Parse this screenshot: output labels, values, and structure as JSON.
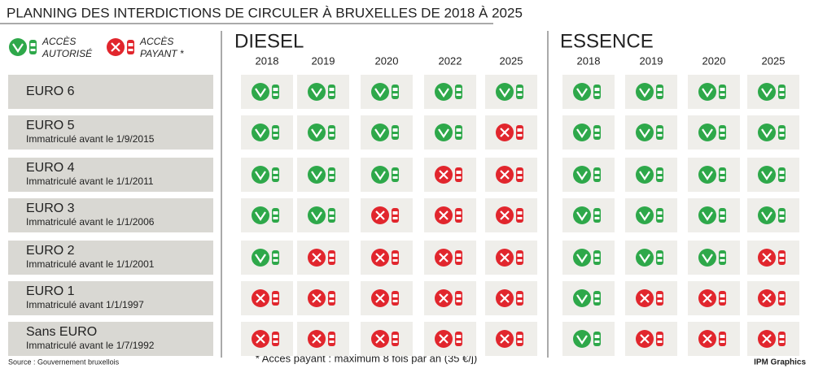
{
  "header": {
    "title": "PLANNING DES INTERDICTIONS DE CIRCULER À BRUXELLES DE 2018 À 2025"
  },
  "legend": [
    {
      "lines": [
        "ACCÈS",
        "AUTORISÉ"
      ]
    },
    {
      "lines": [
        "ACCÈS",
        "PAYANT *"
      ]
    }
  ],
  "groups": [
    {
      "title": "DIESEL",
      "years": [
        "2018",
        "2019",
        "2020",
        "2022",
        "2025"
      ]
    },
    {
      "title": "ESSENCE",
      "years": [
        "2018",
        "2019",
        "2020",
        "2025"
      ]
    }
  ],
  "rows": [
    {
      "label": "EURO 6",
      "sub": null,
      "access": [
        [
          true,
          true,
          true,
          true,
          true
        ],
        [
          true,
          true,
          true,
          true
        ]
      ]
    },
    {
      "label": "EURO 5",
      "sub": "Immatriculé avant le 1/9/2015",
      "access": [
        [
          true,
          true,
          true,
          true,
          false
        ],
        [
          true,
          true,
          true,
          true
        ]
      ]
    },
    {
      "label": "EURO 4",
      "sub": "Immatriculé avant le 1/1/2011",
      "access": [
        [
          true,
          true,
          true,
          false,
          false
        ],
        [
          true,
          true,
          true,
          true
        ]
      ]
    },
    {
      "label": "EURO 3",
      "sub": "Immatriculé avant le 1/1/2006",
      "access": [
        [
          true,
          true,
          false,
          false,
          false
        ],
        [
          true,
          true,
          true,
          true
        ]
      ]
    },
    {
      "label": "EURO 2",
      "sub": "Immatriculé avant le 1/1/2001",
      "access": [
        [
          true,
          false,
          false,
          false,
          false
        ],
        [
          true,
          true,
          true,
          false
        ]
      ]
    },
    {
      "label": "EURO 1",
      "sub": "Immatriculé avant 1/1/1997",
      "access": [
        [
          false,
          false,
          false,
          false,
          false
        ],
        [
          true,
          false,
          false,
          false
        ]
      ]
    },
    {
      "label": "Sans EURO",
      "sub": "Immatriculé avant le 1/7/1992",
      "access": [
        [
          false,
          false,
          false,
          false,
          false
        ],
        [
          true,
          false,
          false,
          false
        ]
      ]
    }
  ],
  "footer": {
    "source": "Source : Gouvernement bruxellois",
    "note": "* Accès payant : maximum 8 fois par an (35 €/j)",
    "brand": "IPM Graphics"
  }
}
